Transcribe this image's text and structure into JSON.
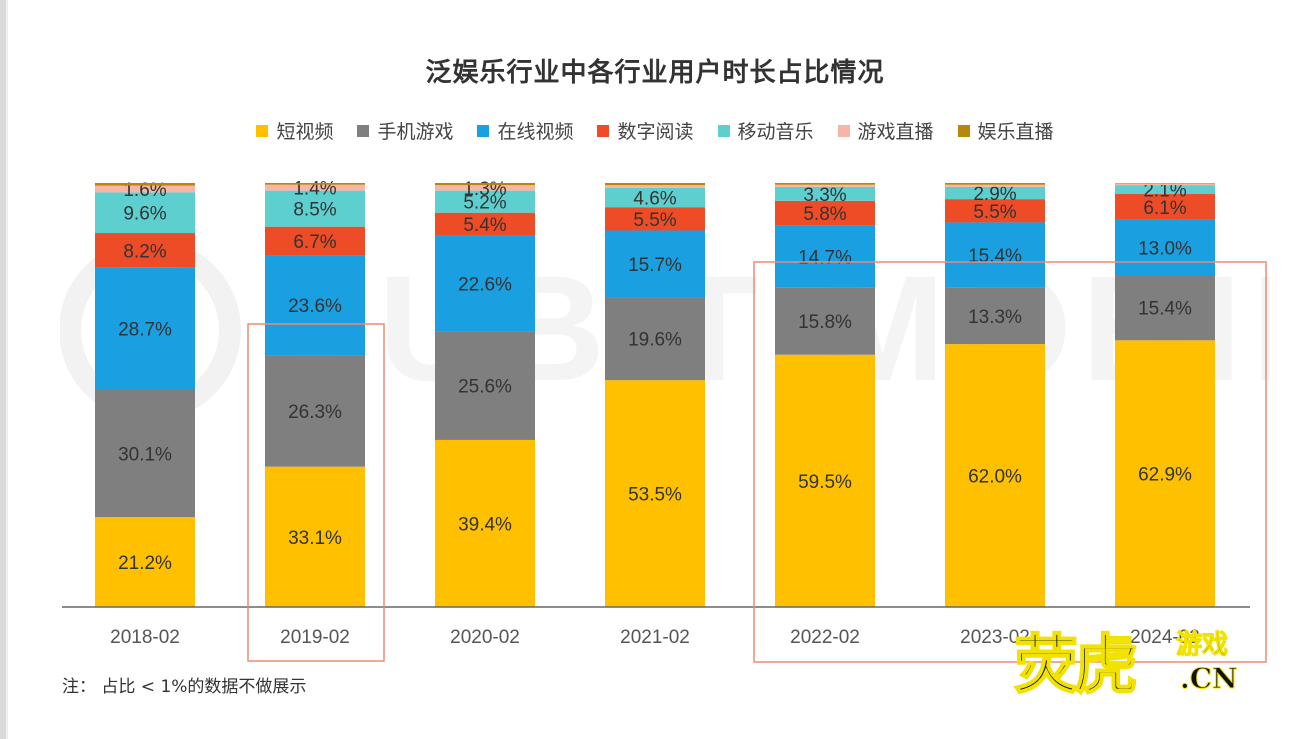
{
  "chart_data": {
    "type": "bar",
    "stacked": true,
    "title": "泛娱乐行业中各行业用户时长占比情况",
    "categories": [
      "2018-02",
      "2019-02",
      "2020-02",
      "2021-02",
      "2022-02",
      "2023-02",
      "2024-02"
    ],
    "series": [
      {
        "name": "短视频",
        "color": "#ffc000",
        "values": [
          21.2,
          33.1,
          39.4,
          53.5,
          59.5,
          62.0,
          62.9
        ],
        "labels": [
          "21.2%",
          "33.1%",
          "39.4%",
          "53.5%",
          "59.5%",
          "62.0%",
          "62.9%"
        ]
      },
      {
        "name": "手机游戏",
        "color": "#7f7f7f",
        "values": [
          30.1,
          26.3,
          25.6,
          19.6,
          15.8,
          13.3,
          15.4
        ],
        "labels": [
          "30.1%",
          "26.3%",
          "25.6%",
          "19.6%",
          "15.8%",
          "13.3%",
          "15.4%"
        ]
      },
      {
        "name": "在线视频",
        "color": "#1a9fe0",
        "values": [
          28.7,
          23.6,
          22.6,
          15.7,
          14.7,
          15.4,
          13.0
        ],
        "labels": [
          "28.7%",
          "23.6%",
          "22.6%",
          "15.7%",
          "14.7%",
          "15.4%",
          "13.0%"
        ]
      },
      {
        "name": "数字阅读",
        "color": "#ee4c26",
        "values": [
          8.2,
          6.7,
          5.4,
          5.5,
          5.8,
          5.5,
          6.1
        ],
        "labels": [
          "8.2%",
          "6.7%",
          "5.4%",
          "5.5%",
          "5.8%",
          "5.5%",
          "6.1%"
        ]
      },
      {
        "name": "移动音乐",
        "color": "#5ecfcf",
        "values": [
          9.6,
          8.5,
          5.2,
          4.6,
          3.3,
          2.9,
          2.1
        ],
        "labels": [
          "9.6%",
          "8.5%",
          "5.2%",
          "4.6%",
          "3.3%",
          "2.9%",
          "2.1%"
        ]
      },
      {
        "name": "游戏直播",
        "color": "#f8b4a6",
        "values": [
          1.6,
          1.4,
          1.3,
          0.6,
          0.5,
          0.5,
          0.4
        ],
        "labels": [
          "1.6%",
          "1.4%",
          "1.3%",
          "",
          "",
          "",
          ""
        ]
      },
      {
        "name": "娱乐直播",
        "color": "#b8860b",
        "values": [
          0.6,
          0.4,
          0.5,
          0.5,
          0.4,
          0.4,
          0.1
        ],
        "labels": [
          "",
          "",
          "",
          "",
          "",
          "",
          ""
        ]
      }
    ],
    "ylim": [
      0,
      100
    ],
    "legend_position": "top",
    "highlight_boxes_color": "#f08a72"
  },
  "note": "注： 占比 < 1%的数据不做展示",
  "watermark": "CUBIT MOBILE",
  "logo": {
    "main": "荧虎",
    "sub": "游戏",
    "domain": ".CN"
  }
}
